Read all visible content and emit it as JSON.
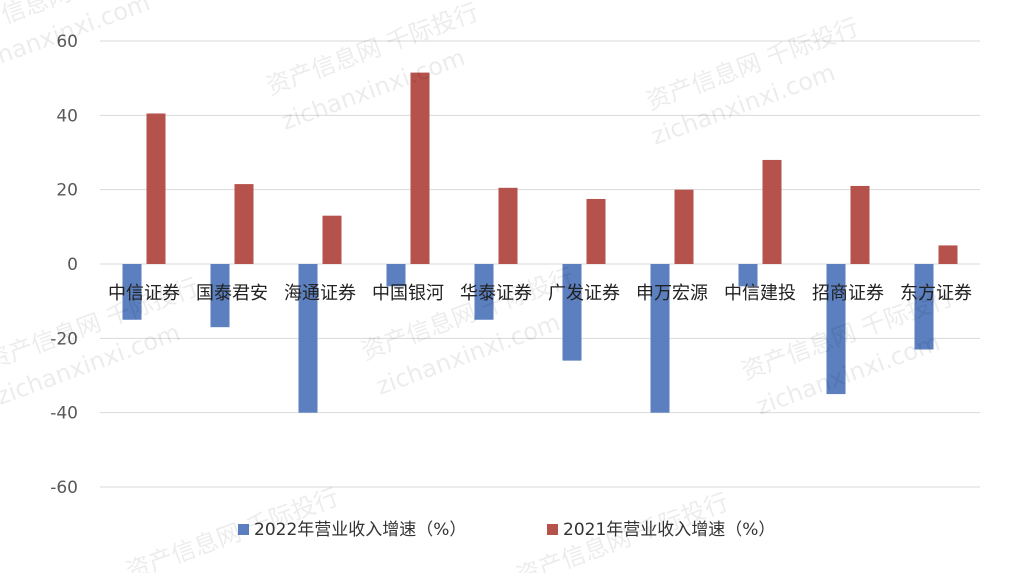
{
  "chart_data": {
    "type": "bar",
    "categories": [
      "中信证券",
      "国泰君安",
      "海通证券",
      "中国银河",
      "华泰证券",
      "广发证券",
      "申万宏源",
      "中信建投",
      "招商证券",
      "东方证券"
    ],
    "series": [
      {
        "name": "2022年营业收入增速（%）",
        "color": "#5b7fbf",
        "values": [
          -15,
          -17,
          -40,
          -6,
          -15,
          -26,
          -40,
          -6,
          -35,
          -23
        ]
      },
      {
        "name": "2021年营业收入增速（%）",
        "color": "#b5524b",
        "values": [
          40.5,
          21.5,
          13,
          51.5,
          20.5,
          17.5,
          20,
          28,
          21,
          5
        ]
      }
    ],
    "ylim": [
      -60,
      60
    ],
    "yticks": [
      60,
      40,
      20,
      0,
      -20,
      -40,
      -60
    ],
    "grid": true,
    "legend_position": "bottom"
  },
  "watermark": {
    "site_name": "资产信息网 千际投行",
    "url": "zichanxinxi.com"
  }
}
